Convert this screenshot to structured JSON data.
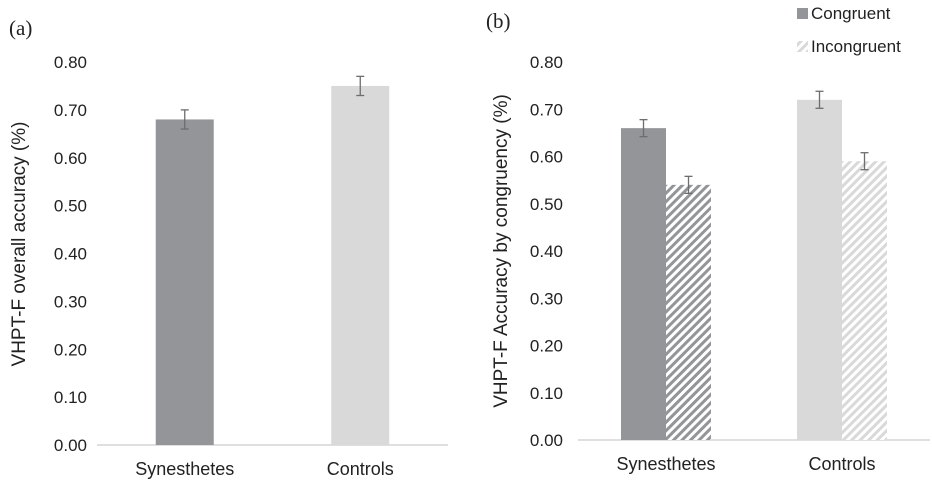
{
  "chart_data": [
    {
      "type": "bar",
      "panel_label": "(a)",
      "categories": [
        "Synesthetes",
        "Controls"
      ],
      "values": [
        0.68,
        0.75
      ],
      "error": [
        0.02,
        0.02
      ],
      "bar_colors": [
        "#939598",
        "#d9d9da"
      ],
      "ylabel": "VHPT-F overall accuracy (%)",
      "xlabel": "",
      "ylim": [
        0,
        0.8
      ],
      "yticks": [
        "0.00",
        "0.10",
        "0.20",
        "0.30",
        "0.40",
        "0.50",
        "0.60",
        "0.70",
        "0.80"
      ],
      "grid": false
    },
    {
      "type": "bar",
      "panel_label": "(b)",
      "categories": [
        "Synesthetes",
        "Controls"
      ],
      "series": [
        {
          "name": "Congruent",
          "values": [
            0.66,
            0.72
          ],
          "error": [
            0.018,
            0.018
          ],
          "pattern": "solid"
        },
        {
          "name": "Incongruent",
          "values": [
            0.54,
            0.59
          ],
          "error": [
            0.018,
            0.018
          ],
          "pattern": "hatched"
        }
      ],
      "category_colors": [
        "#939598",
        "#d9d9da"
      ],
      "ylabel": "VHPT-F Accuracy by congruency (%)",
      "xlabel": "",
      "ylim": [
        0,
        0.8
      ],
      "yticks": [
        "0.00",
        "0.10",
        "0.20",
        "0.30",
        "0.40",
        "0.50",
        "0.60",
        "0.70",
        "0.80"
      ],
      "legend_position": "top-right",
      "grid": false
    }
  ]
}
